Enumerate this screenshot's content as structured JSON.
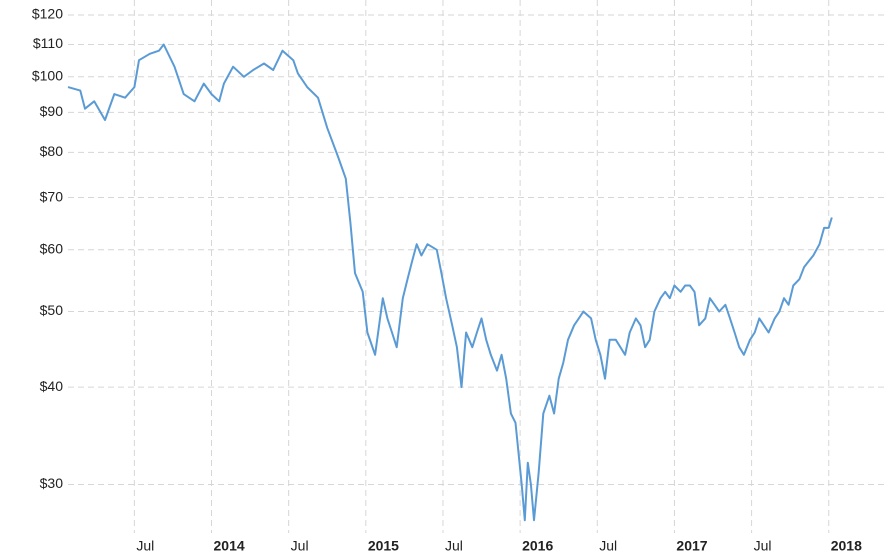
{
  "chart_data": {
    "type": "line",
    "log_y": true,
    "grid": true,
    "x": [
      2013.07,
      2013.15,
      2013.18,
      2013.24,
      2013.31,
      2013.37,
      2013.44,
      2013.5,
      2013.53,
      2013.6,
      2013.66,
      2013.69,
      2013.76,
      2013.82,
      2013.89,
      2013.95,
      2014.0,
      2014.05,
      2014.08,
      2014.14,
      2014.21,
      2014.27,
      2014.34,
      2014.4,
      2014.46,
      2014.53,
      2014.56,
      2014.62,
      2014.69,
      2014.75,
      2014.82,
      2014.87,
      2014.9,
      2014.93,
      2014.98,
      2015.01,
      2015.06,
      2015.11,
      2015.14,
      2015.17,
      2015.2,
      2015.24,
      2015.27,
      2015.3,
      2015.33,
      2015.36,
      2015.4,
      2015.46,
      2015.49,
      2015.52,
      2015.56,
      2015.59,
      2015.62,
      2015.65,
      2015.69,
      2015.72,
      2015.75,
      2015.78,
      2015.81,
      2015.85,
      2015.88,
      2015.91,
      2015.94,
      2015.97,
      2016.01,
      2016.03,
      2016.05,
      2016.07,
      2016.09,
      2016.12,
      2016.15,
      2016.19,
      2016.22,
      2016.25,
      2016.28,
      2016.31,
      2016.35,
      2016.38,
      2016.41,
      2016.46,
      2016.49,
      2016.52,
      2016.55,
      2016.58,
      2016.62,
      2016.65,
      2016.68,
      2016.71,
      2016.75,
      2016.78,
      2016.81,
      2016.84,
      2016.87,
      2016.91,
      2016.94,
      2016.97,
      2017.0,
      2017.04,
      2017.07,
      2017.1,
      2017.13,
      2017.16,
      2017.2,
      2017.23,
      2017.26,
      2017.29,
      2017.33,
      2017.36,
      2017.39,
      2017.42,
      2017.45,
      2017.49,
      2017.52,
      2017.55,
      2017.58,
      2017.61,
      2017.65,
      2017.68,
      2017.71,
      2017.74,
      2017.77,
      2017.81,
      2017.84,
      2017.87,
      2017.9,
      2017.94,
      2017.97,
      2018.0,
      2018.02
    ],
    "series": [
      {
        "color": "#5b9bd5",
        "values": [
          97,
          96,
          91,
          93,
          88,
          95,
          94,
          97,
          105,
          107,
          108,
          110,
          103,
          95,
          93,
          98,
          95,
          93,
          98,
          103,
          100,
          102,
          104,
          102,
          108,
          105,
          101,
          97,
          94,
          86,
          79,
          74,
          65,
          56,
          53,
          47,
          44,
          52,
          49,
          47,
          45,
          52,
          55,
          58,
          61,
          59,
          61,
          60,
          56,
          52,
          48,
          45,
          40,
          47,
          45,
          47,
          49,
          46,
          44,
          42,
          44,
          41,
          37,
          36,
          30,
          27,
          32,
          30,
          27,
          31,
          37,
          39,
          37,
          41,
          43,
          46,
          48,
          49,
          50,
          49,
          46,
          44,
          41,
          46,
          46,
          45,
          44,
          47,
          49,
          48,
          45,
          46,
          50,
          52,
          53,
          52,
          54,
          53,
          54,
          54,
          53,
          48,
          49,
          52,
          51,
          50,
          51,
          49,
          47,
          45,
          44,
          46,
          47,
          49,
          48,
          47,
          49,
          50,
          52,
          51,
          54,
          55,
          57,
          58,
          59,
          61,
          64,
          64,
          66
        ]
      }
    ],
    "xlim": [
      2013.07,
      2018.06
    ],
    "xticks": [
      {
        "value": 2013.5,
        "label": "Jul"
      },
      2014,
      {
        "value": 2014.5,
        "label": "Jul"
      },
      2015,
      {
        "value": 2015.5,
        "label": "Jul"
      },
      2016,
      {
        "value": 2016.5,
        "label": "Jul"
      },
      2017,
      {
        "value": 2017.5,
        "label": "Jul"
      },
      2018
    ],
    "ylim": [
      26,
      120
    ],
    "yticks": [
      {
        "value": 30,
        "label": "$30"
      },
      {
        "value": 40,
        "label": "$40"
      },
      {
        "value": 50,
        "label": "$50"
      },
      {
        "value": 60,
        "label": "$60"
      },
      {
        "value": 70,
        "label": "$70"
      },
      {
        "value": 80,
        "label": "$80"
      },
      {
        "value": 90,
        "label": "$90"
      },
      {
        "value": 100,
        "label": "$100"
      },
      {
        "value": 110,
        "label": "$110"
      },
      {
        "value": 120,
        "label": "$120"
      }
    ]
  }
}
